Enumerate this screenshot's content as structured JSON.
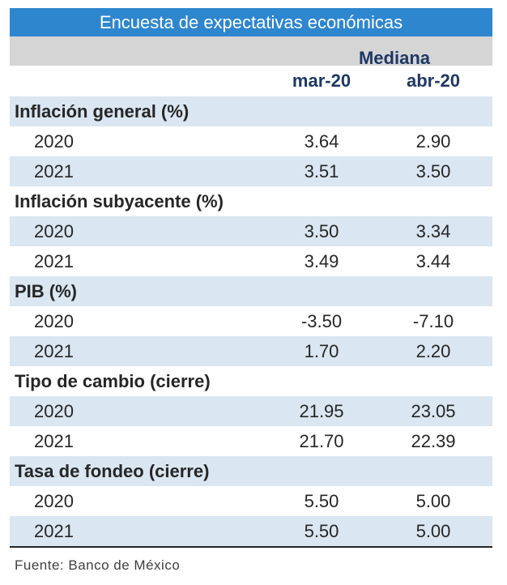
{
  "title": "Encuesta de expectativas económicas",
  "median_label": "Mediana",
  "columns": [
    "mar-20",
    "abr-20"
  ],
  "sections": [
    {
      "label": "Inflación general (%)",
      "rows": [
        {
          "year": "2020",
          "mar": "3.64",
          "abr": "2.90"
        },
        {
          "year": "2021",
          "mar": "3.51",
          "abr": "3.50"
        }
      ]
    },
    {
      "label": "Inflación subyacente (%)",
      "rows": [
        {
          "year": "2020",
          "mar": "3.50",
          "abr": "3.34"
        },
        {
          "year": "2021",
          "mar": "3.49",
          "abr": "3.44"
        }
      ]
    },
    {
      "label": "PIB (%)",
      "rows": [
        {
          "year": "2020",
          "mar": "-3.50",
          "abr": "-7.10"
        },
        {
          "year": "2021",
          "mar": "1.70",
          "abr": "2.20"
        }
      ]
    },
    {
      "label": "Tipo de cambio (cierre)",
      "rows": [
        {
          "year": "2020",
          "mar": "21.95",
          "abr": "23.05"
        },
        {
          "year": "2021",
          "mar": "21.70",
          "abr": "22.39"
        }
      ]
    },
    {
      "label": "Tasa de fondeo (cierre)",
      "rows": [
        {
          "year": "2020",
          "mar": "5.50",
          "abr": "5.00"
        },
        {
          "year": "2021",
          "mar": "5.50",
          "abr": "5.00"
        }
      ]
    }
  ],
  "source": "Fuente: Banco de México",
  "colors": {
    "header_blue": "#2e86cf",
    "header_grey": "#d5d5d5",
    "row_shade": "#dae6f1",
    "col_text": "#1f3864"
  }
}
